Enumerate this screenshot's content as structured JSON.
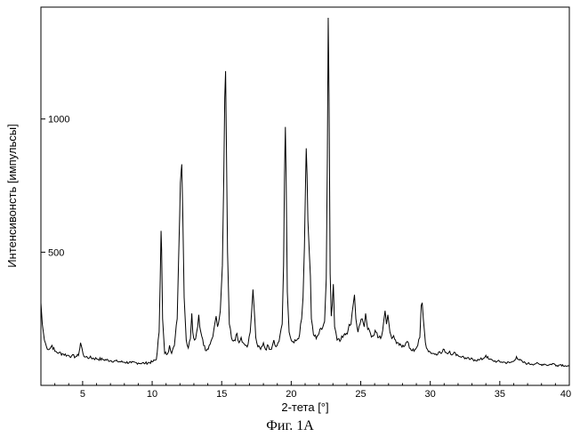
{
  "chart_data": {
    "type": "line",
    "xlabel": "2-тета   [°]",
    "ylabel": "Интенсивонсть [импульсы]",
    "xlim": [
      2,
      40
    ],
    "ylim": [
      0,
      1420
    ],
    "xticks": [
      5,
      10,
      15,
      20,
      25,
      30,
      35,
      40
    ],
    "yticks": [
      500,
      1000
    ],
    "ytick_labels": [
      "500",
      "1000"
    ],
    "grid": false,
    "series": [
      {
        "points": [
          [
            2.0,
            310
          ],
          [
            2.1,
            230
          ],
          [
            2.25,
            170
          ],
          [
            2.4,
            145
          ],
          [
            2.6,
            135
          ],
          [
            2.8,
            150
          ],
          [
            3.0,
            128
          ],
          [
            3.3,
            122
          ],
          [
            3.6,
            118
          ],
          [
            3.9,
            113
          ],
          [
            4.2,
            110
          ],
          [
            4.5,
            108
          ],
          [
            4.7,
            112
          ],
          [
            4.8,
            140
          ],
          [
            4.85,
            160
          ],
          [
            4.95,
            140
          ],
          [
            5.1,
            108
          ],
          [
            5.5,
            104
          ],
          [
            6.0,
            100
          ],
          [
            6.5,
            97
          ],
          [
            7.0,
            93
          ],
          [
            7.5,
            90
          ],
          [
            8.0,
            87
          ],
          [
            8.5,
            85
          ],
          [
            9.0,
            84
          ],
          [
            9.5,
            83
          ],
          [
            10.0,
            88
          ],
          [
            10.3,
            97
          ],
          [
            10.5,
            200
          ],
          [
            10.58,
            400
          ],
          [
            10.64,
            580
          ],
          [
            10.68,
            510
          ],
          [
            10.75,
            250
          ],
          [
            10.9,
            120
          ],
          [
            11.1,
            118
          ],
          [
            11.25,
            150
          ],
          [
            11.4,
            120
          ],
          [
            11.6,
            150
          ],
          [
            11.8,
            250
          ],
          [
            11.9,
            470
          ],
          [
            11.98,
            640
          ],
          [
            12.03,
            760
          ],
          [
            12.08,
            800
          ],
          [
            12.13,
            830
          ],
          [
            12.2,
            650
          ],
          [
            12.3,
            330
          ],
          [
            12.45,
            170
          ],
          [
            12.6,
            140
          ],
          [
            12.75,
            175
          ],
          [
            12.85,
            270
          ],
          [
            12.92,
            200
          ],
          [
            13.05,
            170
          ],
          [
            13.2,
            200
          ],
          [
            13.35,
            265
          ],
          [
            13.5,
            200
          ],
          [
            13.7,
            150
          ],
          [
            13.9,
            130
          ],
          [
            14.1,
            150
          ],
          [
            14.3,
            175
          ],
          [
            14.5,
            230
          ],
          [
            14.6,
            260
          ],
          [
            14.7,
            220
          ],
          [
            14.9,
            280
          ],
          [
            15.05,
            450
          ],
          [
            15.15,
            780
          ],
          [
            15.22,
            1080
          ],
          [
            15.28,
            1180
          ],
          [
            15.33,
            950
          ],
          [
            15.42,
            500
          ],
          [
            15.55,
            230
          ],
          [
            15.7,
            180
          ],
          [
            15.9,
            170
          ],
          [
            16.1,
            195
          ],
          [
            16.25,
            160
          ],
          [
            16.4,
            180
          ],
          [
            16.55,
            160
          ],
          [
            16.7,
            150
          ],
          [
            16.9,
            155
          ],
          [
            17.05,
            200
          ],
          [
            17.17,
            290
          ],
          [
            17.25,
            360
          ],
          [
            17.32,
            300
          ],
          [
            17.45,
            180
          ],
          [
            17.6,
            145
          ],
          [
            17.8,
            135
          ],
          [
            18.0,
            160
          ],
          [
            18.15,
            135
          ],
          [
            18.35,
            150
          ],
          [
            18.5,
            135
          ],
          [
            18.65,
            150
          ],
          [
            18.75,
            170
          ],
          [
            18.9,
            145
          ],
          [
            19.05,
            160
          ],
          [
            19.2,
            190
          ],
          [
            19.35,
            230
          ],
          [
            19.45,
            450
          ],
          [
            19.52,
            800
          ],
          [
            19.58,
            970
          ],
          [
            19.64,
            760
          ],
          [
            19.72,
            350
          ],
          [
            19.85,
            200
          ],
          [
            20.0,
            170
          ],
          [
            20.2,
            160
          ],
          [
            20.4,
            170
          ],
          [
            20.6,
            190
          ],
          [
            20.75,
            250
          ],
          [
            20.85,
            330
          ],
          [
            20.95,
            520
          ],
          [
            21.03,
            760
          ],
          [
            21.08,
            890
          ],
          [
            21.14,
            790
          ],
          [
            21.2,
            620
          ],
          [
            21.3,
            500
          ],
          [
            21.38,
            410
          ],
          [
            21.45,
            250
          ],
          [
            21.6,
            190
          ],
          [
            21.8,
            175
          ],
          [
            22.0,
            195
          ],
          [
            22.2,
            210
          ],
          [
            22.4,
            240
          ],
          [
            22.52,
            400
          ],
          [
            22.6,
            860
          ],
          [
            22.66,
            1380
          ],
          [
            22.72,
            1090
          ],
          [
            22.8,
            420
          ],
          [
            22.88,
            260
          ],
          [
            22.95,
            300
          ],
          [
            23.03,
            380
          ],
          [
            23.12,
            220
          ],
          [
            23.3,
            170
          ],
          [
            23.5,
            165
          ],
          [
            23.7,
            180
          ],
          [
            23.9,
            190
          ],
          [
            24.1,
            210
          ],
          [
            24.3,
            230
          ],
          [
            24.45,
            300
          ],
          [
            24.55,
            340
          ],
          [
            24.65,
            250
          ],
          [
            24.8,
            200
          ],
          [
            24.95,
            230
          ],
          [
            25.1,
            250
          ],
          [
            25.25,
            220
          ],
          [
            25.35,
            270
          ],
          [
            25.5,
            210
          ],
          [
            25.7,
            195
          ],
          [
            25.9,
            185
          ],
          [
            26.1,
            200
          ],
          [
            26.3,
            180
          ],
          [
            26.5,
            185
          ],
          [
            26.65,
            240
          ],
          [
            26.75,
            280
          ],
          [
            26.85,
            230
          ],
          [
            26.95,
            265
          ],
          [
            27.1,
            200
          ],
          [
            27.3,
            180
          ],
          [
            27.5,
            170
          ],
          [
            27.7,
            160
          ],
          [
            27.9,
            150
          ],
          [
            28.1,
            145
          ],
          [
            28.25,
            160
          ],
          [
            28.35,
            165
          ],
          [
            28.5,
            140
          ],
          [
            28.7,
            130
          ],
          [
            28.9,
            135
          ],
          [
            29.1,
            150
          ],
          [
            29.25,
            180
          ],
          [
            29.35,
            300
          ],
          [
            29.42,
            310
          ],
          [
            29.5,
            250
          ],
          [
            29.65,
            160
          ],
          [
            29.8,
            135
          ],
          [
            30.0,
            125
          ],
          [
            30.2,
            120
          ],
          [
            30.4,
            118
          ],
          [
            30.6,
            125
          ],
          [
            30.8,
            120
          ],
          [
            31.0,
            135
          ],
          [
            31.2,
            120
          ],
          [
            31.4,
            128
          ],
          [
            31.6,
            115
          ],
          [
            31.8,
            122
          ],
          [
            32.0,
            112
          ],
          [
            32.3,
            108
          ],
          [
            32.6,
            100
          ],
          [
            32.9,
            98
          ],
          [
            33.2,
            96
          ],
          [
            33.5,
            95
          ],
          [
            33.8,
            100
          ],
          [
            34.0,
            113
          ],
          [
            34.2,
            98
          ],
          [
            34.5,
            93
          ],
          [
            34.8,
            90
          ],
          [
            35.1,
            88
          ],
          [
            35.4,
            86
          ],
          [
            35.7,
            85
          ],
          [
            36.0,
            90
          ],
          [
            36.2,
            108
          ],
          [
            36.4,
            95
          ],
          [
            36.7,
            86
          ],
          [
            37.0,
            82
          ],
          [
            37.3,
            80
          ],
          [
            37.6,
            82
          ],
          [
            37.9,
            78
          ],
          [
            38.2,
            80
          ],
          [
            38.5,
            76
          ],
          [
            38.8,
            82
          ],
          [
            39.1,
            75
          ],
          [
            39.4,
            78
          ],
          [
            39.7,
            74
          ],
          [
            40.0,
            72
          ]
        ]
      }
    ]
  },
  "caption": "Фиг. 1А"
}
